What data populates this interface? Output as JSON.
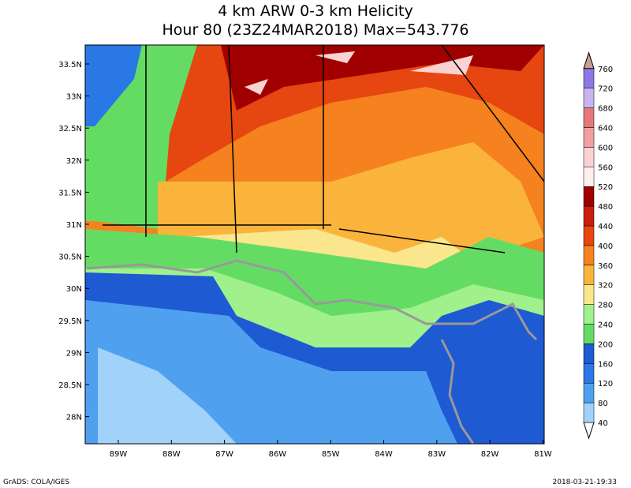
{
  "title": {
    "line1": "4 km ARW 0-3 km Helicity",
    "line2": "Hour 80 (23Z24MAR2018) Max=543.776"
  },
  "map": {
    "lat_labels": [
      "33.5N",
      "33N",
      "32.5N",
      "32N",
      "31.5N",
      "31N",
      "30.5N",
      "30N",
      "29.5N",
      "29N",
      "28.5N",
      "28N"
    ],
    "lon_labels": [
      "89W",
      "88W",
      "87W",
      "86W",
      "85W",
      "84W",
      "83W",
      "82W",
      "81W"
    ]
  },
  "colorbar": {
    "levels": [
      40,
      80,
      120,
      160,
      200,
      240,
      280,
      320,
      360,
      400,
      440,
      480,
      520,
      560,
      600,
      640,
      680,
      720,
      760
    ],
    "colors": [
      "#ffffff",
      "#a0d2fa",
      "#50a0f0",
      "#2a78e6",
      "#1e5ad2",
      "#64dc64",
      "#a0f08c",
      "#fae68c",
      "#fab43c",
      "#f5821e",
      "#e6460f",
      "#c81e0a",
      "#a00000",
      "#fff0f0",
      "#fad2d2",
      "#f0a0a0",
      "#e67878",
      "#c8b4f0",
      "#8c78e6",
      "#c8a08c"
    ]
  },
  "footer": {
    "left": "GrADS: COLA/IGES",
    "right": "2018-03-21-19:33"
  }
}
